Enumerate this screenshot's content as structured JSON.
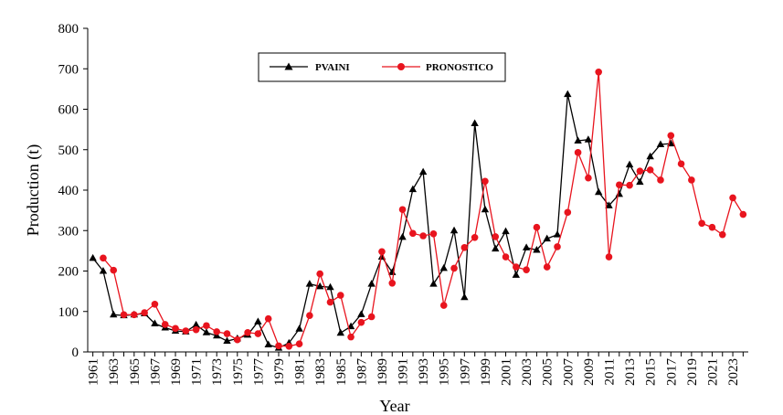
{
  "chart_data": {
    "type": "line",
    "xlabel": "Year",
    "ylabel": "Production (t)",
    "ylim": [
      0,
      800
    ],
    "yticks": [
      0,
      100,
      200,
      300,
      400,
      500,
      600,
      700,
      800
    ],
    "xlim": [
      1961,
      2024
    ],
    "xtick_labels": [
      "1961",
      "1963",
      "1965",
      "1967",
      "1969",
      "1971",
      "1973",
      "1975",
      "1977",
      "1979",
      "1981",
      "1983",
      "1985",
      "1987",
      "1989",
      "1991",
      "1993",
      "1995",
      "1997",
      "1999",
      "2001",
      "2003",
      "2005",
      "2007",
      "2009",
      "2011",
      "2013",
      "2015",
      "2017",
      "2019",
      "2021",
      "2023"
    ],
    "grid": false,
    "legend_position": "top-center",
    "series": [
      {
        "name": "PVAINI",
        "color": "#000000",
        "marker": "triangle",
        "x": [
          1961,
          1962,
          1963,
          1964,
          1965,
          1966,
          1967,
          1968,
          1969,
          1970,
          1971,
          1972,
          1973,
          1974,
          1975,
          1976,
          1977,
          1978,
          1979,
          1980,
          1981,
          1982,
          1983,
          1984,
          1985,
          1986,
          1987,
          1988,
          1989,
          1990,
          1991,
          1992,
          1993,
          1994,
          1995,
          1996,
          1997,
          1998,
          1999,
          2000,
          2001,
          2002,
          2003,
          2004,
          2005,
          2006,
          2007,
          2008,
          2009,
          2010,
          2011,
          2012,
          2013,
          2014,
          2015,
          2016,
          2017
        ],
        "values": [
          232,
          200,
          92,
          90,
          92,
          95,
          70,
          60,
          52,
          50,
          67,
          48,
          40,
          27,
          33,
          42,
          75,
          18,
          10,
          22,
          57,
          168,
          162,
          160,
          47,
          63,
          93,
          168,
          235,
          197,
          284,
          402,
          445,
          168,
          207,
          300,
          135,
          565,
          352,
          255,
          298,
          190,
          258,
          252,
          280,
          290,
          637,
          522,
          525,
          395,
          362,
          390,
          463,
          420,
          483,
          513,
          515
        ]
      },
      {
        "name": "PRONOSTICO",
        "color": "#e8141e",
        "marker": "circle",
        "x": [
          1962,
          1963,
          1964,
          1965,
          1966,
          1967,
          1968,
          1969,
          1970,
          1971,
          1972,
          1973,
          1974,
          1975,
          1976,
          1977,
          1978,
          1979,
          1980,
          1981,
          1982,
          1983,
          1984,
          1985,
          1986,
          1987,
          1988,
          1989,
          1990,
          1991,
          1992,
          1993,
          1994,
          1995,
          1996,
          1997,
          1998,
          1999,
          2000,
          2001,
          2002,
          2003,
          2004,
          2005,
          2006,
          2007,
          2008,
          2009,
          2010,
          2011,
          2012,
          2013,
          2014,
          2015,
          2016,
          2017,
          2018,
          2019,
          2020,
          2021,
          2022,
          2023,
          2024
        ],
        "values": [
          232,
          202,
          92,
          92,
          97,
          118,
          68,
          58,
          52,
          55,
          65,
          50,
          45,
          30,
          48,
          45,
          82,
          15,
          14,
          20,
          90,
          193,
          123,
          140,
          37,
          73,
          87,
          248,
          170,
          352,
          293,
          287,
          292,
          115,
          207,
          258,
          283,
          422,
          285,
          235,
          210,
          203,
          308,
          210,
          260,
          345,
          493,
          430,
          692,
          235,
          413,
          412,
          447,
          450,
          425,
          535,
          465,
          425,
          318,
          308,
          290,
          381,
          340
        ]
      }
    ]
  }
}
